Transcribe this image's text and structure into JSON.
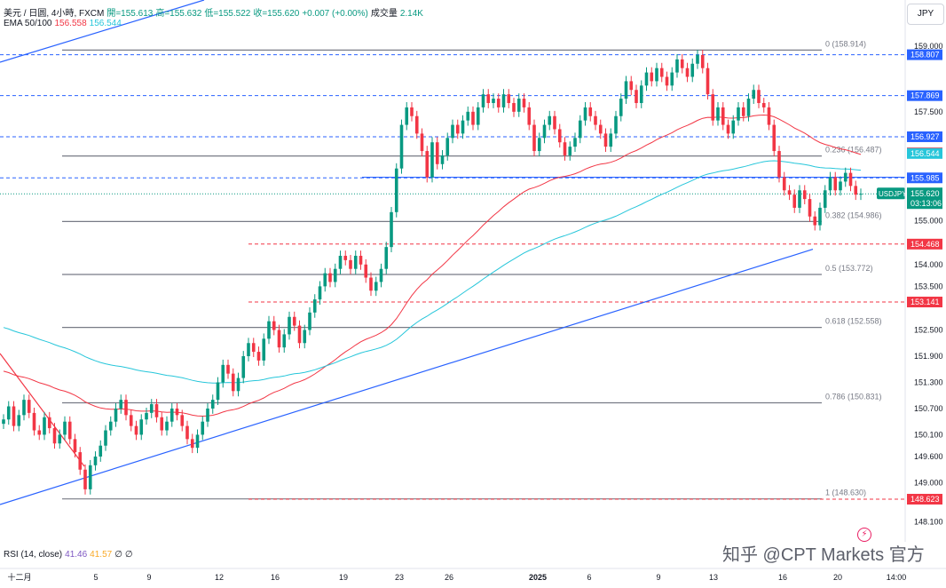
{
  "header": {
    "line1": [
      {
        "text": "美元 / 日圆, 4小時, FXCM",
        "color": "#131722"
      },
      {
        "text": "開=155.613",
        "color": "#089981"
      },
      {
        "text": "高=155.632",
        "color": "#089981"
      },
      {
        "text": "低=155.522",
        "color": "#089981"
      },
      {
        "text": "收=155.620",
        "color": "#089981"
      },
      {
        "text": "+0.007 (+0.00%)",
        "color": "#089981"
      },
      {
        "text": "成交量",
        "color": "#131722"
      },
      {
        "text": "2.14K",
        "color": "#089981"
      }
    ],
    "line2": [
      {
        "text": "EMA 50/100",
        "color": "#131722"
      },
      {
        "text": "156.558",
        "color": "#f23645"
      },
      {
        "text": "156.544",
        "color": "#26c6da"
      }
    ]
  },
  "currency_button": "JPY",
  "rsi_legend": [
    {
      "text": "RSI (14, close)",
      "color": "#131722"
    },
    {
      "text": "41.46",
      "color": "#7e57c2"
    },
    {
      "text": "41.57",
      "color": "#f9a825"
    },
    {
      "text": "∅",
      "color": "#131722"
    },
    {
      "text": "∅",
      "color": "#131722"
    }
  ],
  "watermark": "知乎 @CPT Markets 官方",
  "flash_icon": "lightning-icon",
  "colors": {
    "up": "#089981",
    "down": "#f23645",
    "ema50": "#f23645",
    "ema100": "#26c6da",
    "trendline": "#2962ff",
    "fib": "#787b86",
    "support_red": "#f23645",
    "resistance_blue": "#2962ff"
  },
  "chart_data": {
    "type": "candlestick",
    "symbol": "USDJPY",
    "timeframe": "4小時",
    "y_ticks": [
      "159.000",
      "157.500",
      "155.000",
      "154.000",
      "153.500",
      "152.500",
      "151.900",
      "151.300",
      "150.700",
      "150.100",
      "149.600",
      "149.000",
      "148.100"
    ],
    "x_ticks": [
      "十二月",
      "5",
      "9",
      "12",
      "16",
      "19",
      "23",
      "26",
      "2025",
      "6",
      "9",
      "13",
      "16",
      "20",
      "14:00"
    ],
    "ylim": [
      147.85,
      159.45
    ],
    "price_labels": [
      {
        "value": 158.807,
        "text": "158.807",
        "color": "#2962ff"
      },
      {
        "value": 157.869,
        "text": "157.869",
        "color": "#2962ff"
      },
      {
        "value": 156.927,
        "text": "156.927",
        "color": "#2962ff"
      },
      {
        "value": 156.558,
        "text": "156.558",
        "color": "#f23645"
      },
      {
        "value": 156.544,
        "text": "156.544",
        "color": "#26c6da"
      },
      {
        "value": 155.985,
        "text": "155.985",
        "color": "#2962ff"
      },
      {
        "value": 155.62,
        "text": "155.620",
        "sub": "03:13:06",
        "color": "#089981",
        "tag": "USDJPY"
      },
      {
        "value": 154.468,
        "text": "154.468",
        "color": "#f23645"
      },
      {
        "value": 153.141,
        "text": "153.141",
        "color": "#f23645"
      },
      {
        "value": 148.623,
        "text": "148.623",
        "color": "#f23645"
      }
    ],
    "fib_levels": [
      {
        "ratio": "0",
        "value": 158.914,
        "text": "0 (158.914)"
      },
      {
        "ratio": "0.236",
        "value": 156.487,
        "text": "0.236 (156.487)"
      },
      {
        "ratio": "0.382",
        "value": 154.986,
        "text": "0.382 (154.986)"
      },
      {
        "ratio": "0.5",
        "value": 153.772,
        "text": "0.5 (153.772)"
      },
      {
        "ratio": "0.618",
        "value": 152.558,
        "text": "0.618 (152.558)"
      },
      {
        "ratio": "0.786",
        "value": 150.831,
        "text": "0.786 (150.831)"
      },
      {
        "ratio": "1",
        "value": 148.63,
        "text": "1 (148.630)"
      }
    ],
    "closes": [
      150.45,
      150.75,
      150.3,
      150.55,
      150.9,
      150.6,
      150.2,
      150.1,
      150.5,
      150.25,
      149.9,
      150.1,
      150.4,
      150.0,
      149.7,
      149.3,
      148.85,
      149.4,
      149.6,
      149.85,
      150.2,
      150.4,
      150.7,
      150.9,
      150.55,
      150.3,
      150.1,
      150.45,
      150.6,
      150.8,
      150.5,
      150.2,
      150.4,
      150.7,
      150.55,
      150.3,
      150.0,
      149.8,
      150.1,
      150.4,
      150.7,
      150.9,
      151.3,
      151.7,
      151.5,
      151.1,
      151.4,
      151.9,
      152.2,
      152.0,
      151.8,
      152.3,
      152.7,
      152.5,
      152.1,
      152.4,
      152.8,
      152.6,
      152.2,
      152.5,
      152.9,
      153.2,
      153.5,
      153.8,
      153.6,
      153.9,
      154.2,
      154.1,
      153.9,
      154.2,
      154.0,
      153.7,
      153.4,
      153.6,
      153.9,
      154.4,
      155.2,
      156.2,
      157.2,
      157.6,
      157.4,
      157.0,
      156.6,
      156.0,
      156.8,
      156.3,
      156.5,
      156.9,
      157.2,
      157.0,
      157.3,
      157.5,
      157.2,
      157.6,
      157.9,
      157.7,
      157.8,
      157.6,
      157.9,
      157.7,
      157.5,
      157.8,
      157.6,
      157.2,
      156.6,
      156.9,
      157.2,
      157.4,
      157.1,
      156.8,
      156.5,
      156.7,
      156.9,
      157.3,
      157.6,
      157.4,
      157.2,
      157.0,
      156.7,
      157.0,
      157.4,
      157.8,
      158.2,
      158.0,
      157.7,
      158.1,
      158.4,
      158.2,
      158.5,
      158.3,
      158.1,
      158.4,
      158.7,
      158.5,
      158.3,
      158.6,
      158.8,
      158.5,
      157.9,
      157.3,
      157.6,
      157.2,
      157.0,
      157.3,
      157.6,
      157.4,
      157.8,
      158.0,
      157.7,
      157.6,
      157.2,
      156.6,
      156.0,
      155.7,
      155.6,
      155.3,
      155.7,
      155.5,
      155.1,
      154.9,
      155.3,
      155.7,
      156.0,
      155.7,
      155.9,
      156.1,
      155.8,
      155.6,
      155.62
    ],
    "ema50_end": 156.558,
    "ema100_end": 156.544,
    "rsi": {
      "period": 14,
      "source": "close",
      "values": [
        41.46,
        41.57
      ]
    }
  }
}
